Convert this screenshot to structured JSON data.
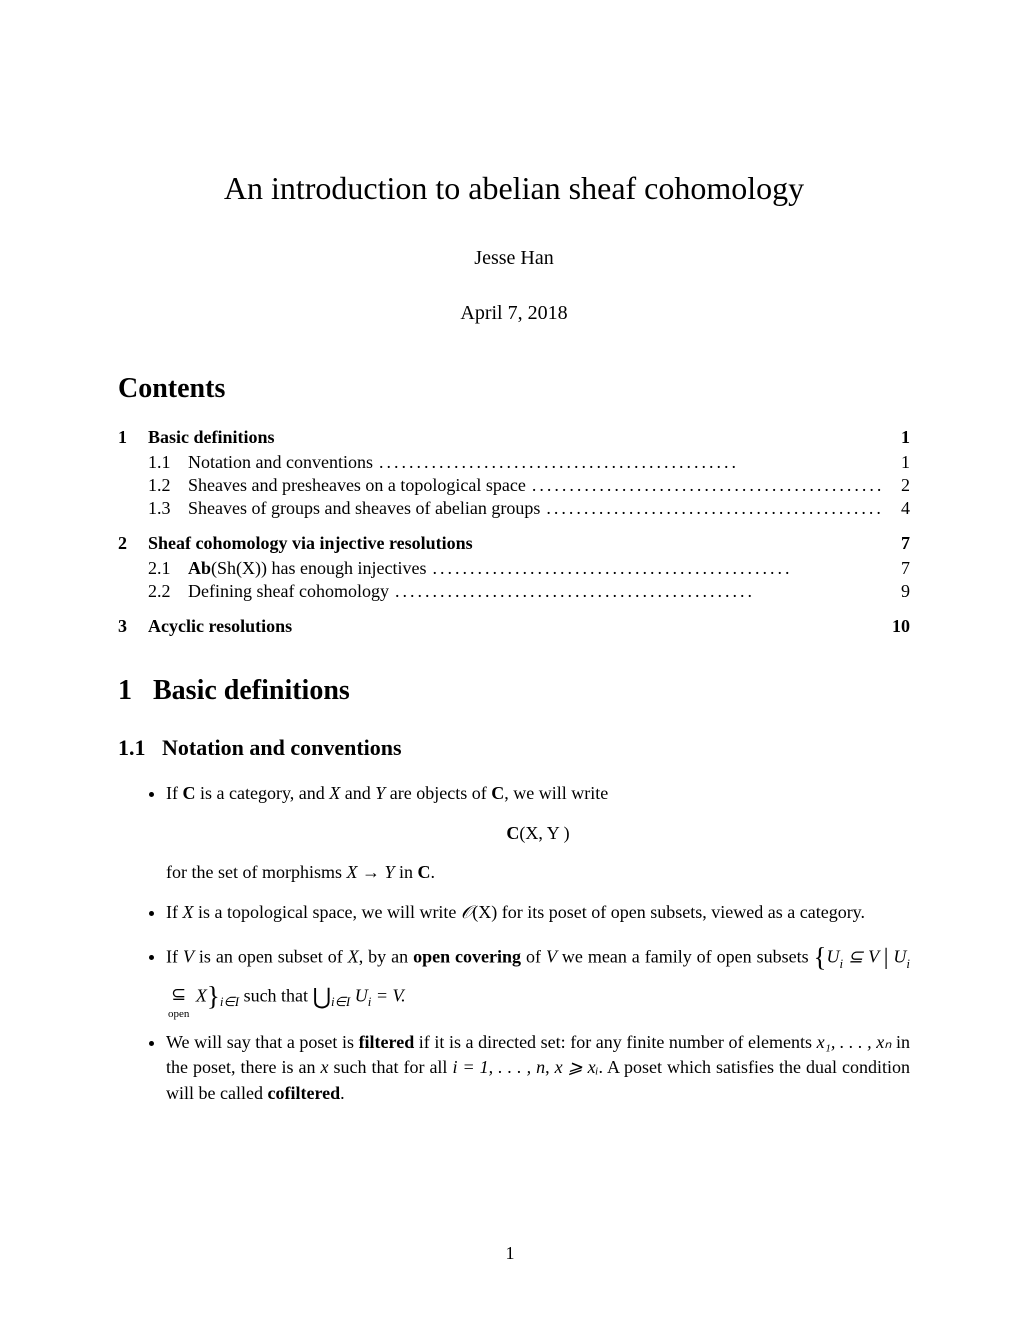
{
  "background_color": "#ffffff",
  "text_color": "#000000",
  "title": "An introduction to abelian sheaf cohomology",
  "author": "Jesse Han",
  "date": "April 7, 2018",
  "contents_heading": "Contents",
  "toc": {
    "dots": "................................................",
    "sections": [
      {
        "num": "1",
        "title": "Basic definitions",
        "page": "1",
        "subsections": [
          {
            "num": "1.1",
            "title": "Notation and conventions",
            "page": "1"
          },
          {
            "num": "1.2",
            "title": "Sheaves and presheaves on a topological space",
            "page": "2"
          },
          {
            "num": "1.3",
            "title": "Sheaves of groups and sheaves of abelian groups",
            "page": "4"
          }
        ]
      },
      {
        "num": "2",
        "title": "Sheaf cohomology via injective resolutions",
        "page": "7",
        "subsections": [
          {
            "num": "2.1",
            "title_html": "ab_sh_injectives",
            "page": "7"
          },
          {
            "num": "2.2",
            "title": "Defining sheaf cohomology",
            "page": "9"
          }
        ]
      },
      {
        "num": "3",
        "title": "Acyclic resolutions",
        "page": "10",
        "subsections": []
      }
    ]
  },
  "section1": {
    "num": "1",
    "title": "Basic definitions"
  },
  "subsection11": {
    "num": "1.1",
    "title": "Notation and conventions"
  },
  "bullets": {
    "b1_pre": "If ",
    "b1_c": "C",
    "b1_mid1": " is a category, and ",
    "b1_x": "X",
    "b1_mid2": " and ",
    "b1_y": "Y",
    "b1_mid3": " are objects of ",
    "b1_mid4": ", we will write",
    "b1_display_c": "C",
    "b1_display_args": "(X, Y )",
    "b1_after": "for the set of morphisms ",
    "b1_arrow": "X → Y",
    "b1_after2": " in ",
    "b1_after3": ".",
    "b2_pre": "If ",
    "b2_x": "X",
    "b2_mid1": " is a topological space, we will write ",
    "b2_o": "𝒪",
    "b2_ox": "(X)",
    "b2_mid2": " for its poset of open subsets, viewed as a category.",
    "b3_pre": "If ",
    "b3_v": "V",
    "b3_mid1": " is an open subset of ",
    "b3_x": "X",
    "b3_mid2": ", by an ",
    "b3_opencov": "open covering",
    "b3_mid3": " of ",
    "b3_mid4": " we mean a family of open subsets ",
    "b3_set_pre": "U",
    "b3_set_sub_i": "i",
    "b3_sub_V": " ⊆ V ",
    "b3_bar": "|",
    "b3_open": "open",
    "b3_subset": "⊆",
    "b3_X2": " X",
    "b3_iI": "i∈I",
    "b3_such": " such that ",
    "b3_cup": "⋃",
    "b3_eq": " = V.",
    "b4_pre": "We will say that a poset is ",
    "b4_filtered": "filtered",
    "b4_mid1": " if it is a directed set: for any finite number of elements ",
    "b4_x1xn": "x₁, . . . , xₙ",
    "b4_mid2": " in the poset, there is an ",
    "b4_x": "x",
    "b4_mid3": " such that for all ",
    "b4_i1n": "i = 1, . . . , n",
    "b4_mid4": ", ",
    "b4_geq": "x ⩾ xᵢ",
    "b4_mid5": ". A poset which satisfies the dual condition will be called ",
    "b4_cofiltered": "cofiltered",
    "b4_end": "."
  },
  "page_number": "1",
  "special": {
    "ab_sh_injectives_bold": "Ab",
    "ab_sh_injectives_rest": "(Sh(X)) has enough injectives"
  }
}
